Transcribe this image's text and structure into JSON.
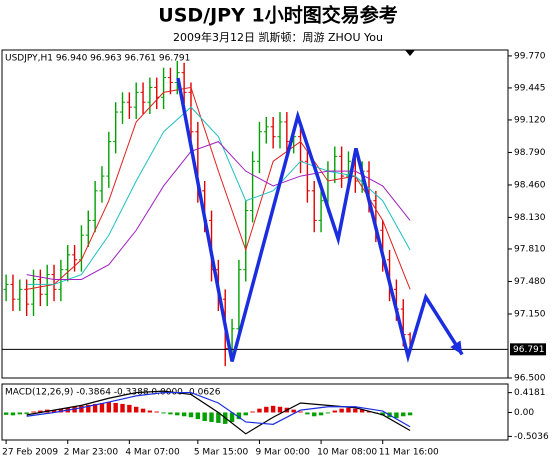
{
  "chart_data": {
    "type": "ohlc",
    "title": "USD/JPY 1小时图交易参考",
    "subtitle": "2009年3月12日  凯斯顿：周游 ZHOU You",
    "info": "USDJPY,H1  96.940 96.963 96.761 96.791",
    "last_price": 96.791,
    "up_color": "#00a000",
    "down_color": "#e00000",
    "xlim": [
      -0.6,
      73.3
    ],
    "ylim": [
      96.5,
      99.83
    ],
    "yticks": [
      {
        "value": 99.77,
        "label": "99.770"
      },
      99.445,
      {
        "value": 99.12,
        "label": "99.120"
      },
      {
        "value": 98.79,
        "label": "98.790"
      },
      {
        "value": 98.46,
        "label": "98.460"
      },
      {
        "value": 98.13,
        "label": "98.130"
      },
      {
        "value": 97.81,
        "label": "97.810"
      },
      {
        "value": 97.48,
        "label": "97.480"
      },
      {
        "value": 97.15,
        "label": "97.150"
      },
      {
        "value": 96.5,
        "label": "96.500"
      }
    ],
    "xticks": [
      {
        "value": 0,
        "label": "27 Feb 2009"
      },
      {
        "value": 9,
        "label": "2 Mar 23:00"
      },
      {
        "value": 18,
        "label": "4 Mar 07:00"
      },
      {
        "value": 28,
        "label": "5 Mar 15:00"
      },
      {
        "value": 37,
        "label": "9 Mar 00:00"
      },
      {
        "value": 46,
        "label": "10 Mar 08:00"
      },
      {
        "value": 55,
        "label": "11 Mar 16:00"
      }
    ],
    "open": [
      97.4,
      97.45,
      97.3,
      97.4,
      97.25,
      97.5,
      97.35,
      97.55,
      97.4,
      97.6,
      97.75,
      97.7,
      97.95,
      98.1,
      98.4,
      98.55,
      98.9,
      99.2,
      99.3,
      99.25,
      99.4,
      99.3,
      99.45,
      99.35,
      99.55,
      99.5,
      99.6,
      99.4,
      99.0,
      98.4,
      98.1,
      97.6,
      97.3,
      96.8,
      97.0,
      97.6,
      98.2,
      98.7,
      99.0,
      99.05,
      98.95,
      99.1,
      98.9,
      98.95,
      98.7,
      98.4,
      98.1,
      98.3,
      98.6,
      98.75,
      98.55,
      98.7,
      98.5,
      98.6,
      98.3,
      98.0,
      97.7,
      97.4,
      97.2,
      96.94
    ],
    "high": [
      97.55,
      97.55,
      97.5,
      97.5,
      97.6,
      97.6,
      97.65,
      97.65,
      97.7,
      97.85,
      97.85,
      98.05,
      98.2,
      98.5,
      98.65,
      99.0,
      99.3,
      99.4,
      99.4,
      99.5,
      99.5,
      99.55,
      99.55,
      99.65,
      99.65,
      99.72,
      99.7,
      99.5,
      99.1,
      98.5,
      98.2,
      97.7,
      97.4,
      97.1,
      97.7,
      98.3,
      98.8,
      99.1,
      99.15,
      99.15,
      99.2,
      99.2,
      99.05,
      99.05,
      98.8,
      98.5,
      98.4,
      98.7,
      98.85,
      98.85,
      98.8,
      98.8,
      98.7,
      98.7,
      98.4,
      98.1,
      97.8,
      97.5,
      97.3,
      96.963
    ],
    "low": [
      97.28,
      97.18,
      97.18,
      97.13,
      97.13,
      97.23,
      97.23,
      97.28,
      97.28,
      97.48,
      97.58,
      97.58,
      97.83,
      97.98,
      98.28,
      98.43,
      98.78,
      99.08,
      99.13,
      99.13,
      99.18,
      99.18,
      99.23,
      99.23,
      99.38,
      99.38,
      99.28,
      98.88,
      98.28,
      97.98,
      97.48,
      97.18,
      96.62,
      96.68,
      96.88,
      97.48,
      98.08,
      98.58,
      98.88,
      98.83,
      98.83,
      98.78,
      98.78,
      98.58,
      98.28,
      97.98,
      97.98,
      98.18,
      98.48,
      98.43,
      98.43,
      98.38,
      98.38,
      98.18,
      97.88,
      97.58,
      97.28,
      97.08,
      96.82,
      96.761
    ],
    "close": [
      97.45,
      97.3,
      97.4,
      97.25,
      97.5,
      97.35,
      97.55,
      97.4,
      97.6,
      97.75,
      97.7,
      97.95,
      98.1,
      98.4,
      98.55,
      98.9,
      99.2,
      99.3,
      99.25,
      99.4,
      99.3,
      99.45,
      99.35,
      99.55,
      99.5,
      99.6,
      99.4,
      99.0,
      98.4,
      98.1,
      97.6,
      97.3,
      96.8,
      97.0,
      97.6,
      98.2,
      98.7,
      99.0,
      99.05,
      98.95,
      99.1,
      98.9,
      98.95,
      98.7,
      98.4,
      98.1,
      98.3,
      98.6,
      98.75,
      98.55,
      98.7,
      98.5,
      98.6,
      98.3,
      98.0,
      97.7,
      97.4,
      97.2,
      96.94,
      96.791
    ],
    "lines": [
      {
        "color": "#e02020",
        "x": [
          3,
          7,
          11,
          15,
          19,
          23,
          27,
          31,
          35,
          39,
          43,
          47,
          51,
          55,
          59
        ],
        "values": [
          97.4,
          97.45,
          97.7,
          98.3,
          99.1,
          99.4,
          99.45,
          98.6,
          97.8,
          98.7,
          98.9,
          98.5,
          98.55,
          98.1,
          97.4
        ]
      },
      {
        "color": "#20c0c0",
        "x": [
          3,
          7,
          11,
          15,
          19,
          23,
          27,
          31,
          35,
          39,
          43,
          47,
          51,
          55,
          59
        ],
        "values": [
          97.45,
          97.45,
          97.55,
          97.95,
          98.5,
          99.0,
          99.25,
          98.95,
          98.3,
          98.4,
          98.7,
          98.6,
          98.55,
          98.3,
          97.8
        ]
      },
      {
        "color": "#a020c0",
        "x": [
          3,
          7,
          11,
          15,
          19,
          23,
          27,
          31,
          35,
          39,
          43,
          47,
          51,
          55,
          59
        ],
        "values": [
          97.55,
          97.5,
          97.5,
          97.65,
          98.0,
          98.45,
          98.8,
          98.9,
          98.6,
          98.45,
          98.55,
          98.6,
          98.6,
          98.45,
          98.1
        ]
      }
    ],
    "pattern": {
      "color": "#1a2ee0",
      "x": [
        25.1,
        33.0,
        42.6,
        48.5,
        51.1,
        58.7,
        61.3,
        66.6
      ],
      "values": [
        99.545,
        96.668,
        99.158,
        97.913,
        98.831,
        96.719,
        97.321,
        96.739
      ]
    },
    "macd": {
      "title": "MACD(12,26,9) -0.3864 -0.3388 0.0000 -0.0626",
      "ylim": [
        -0.58,
        0.6
      ],
      "yticks": [
        0.4181,
        {
          "value": 0,
          "label": "0.00"
        },
        -0.5036
      ],
      "histogram": [
        -0.05,
        -0.06,
        -0.04,
        -0.03,
        0.02,
        0.04,
        0.06,
        0.05,
        0.08,
        0.1,
        0.12,
        0.14,
        0.16,
        0.18,
        0.2,
        0.22,
        0.2,
        0.18,
        0.16,
        0.12,
        0.08,
        0.04,
        0.02,
        -0.02,
        -0.04,
        -0.06,
        -0.08,
        -0.1,
        -0.14,
        -0.18,
        -0.2,
        -0.22,
        -0.24,
        -0.2,
        -0.14,
        -0.06,
        0.02,
        0.08,
        0.12,
        0.14,
        0.12,
        0.1,
        0.06,
        0.02,
        -0.04,
        -0.08,
        -0.06,
        -0.02,
        0.04,
        0.08,
        0.1,
        0.08,
        0.06,
        0.02,
        -0.02,
        -0.06,
        -0.1,
        -0.12,
        -0.08,
        -0.06
      ],
      "lines": [
        {
          "color": "#000000",
          "x": [
            3,
            7,
            11,
            15,
            19,
            23,
            27,
            31,
            35,
            39,
            43,
            47,
            51,
            55,
            59
          ],
          "values": [
            -0.05,
            0.05,
            0.15,
            0.3,
            0.42,
            0.45,
            0.38,
            0.0,
            -0.45,
            -0.1,
            0.2,
            0.15,
            0.1,
            -0.05,
            -0.38
          ]
        },
        {
          "color": "#1a2ee0",
          "x": [
            3,
            7,
            11,
            15,
            19,
            23,
            27,
            31,
            35,
            39,
            43,
            47,
            51,
            55,
            59
          ],
          "values": [
            -0.08,
            0.0,
            0.1,
            0.22,
            0.35,
            0.42,
            0.42,
            0.2,
            -0.2,
            -0.25,
            0.05,
            0.12,
            0.12,
            0.03,
            -0.3
          ]
        }
      ]
    }
  }
}
